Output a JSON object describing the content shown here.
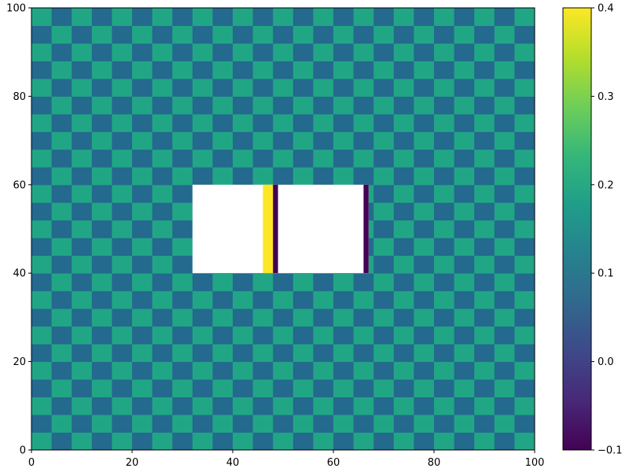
{
  "chart_data": {
    "type": "heatmap",
    "title": "",
    "xlabel": "",
    "ylabel": "",
    "xlim": [
      0,
      100
    ],
    "ylim": [
      0,
      100
    ],
    "x_ticks": [
      0,
      20,
      40,
      60,
      80,
      100
    ],
    "y_ticks": [
      0,
      20,
      40,
      60,
      80,
      100
    ],
    "x_tick_labels": [
      "0",
      "20",
      "40",
      "60",
      "80",
      "100"
    ],
    "y_tick_labels": [
      "0",
      "20",
      "40",
      "60",
      "80",
      "100"
    ],
    "colormap": "viridis",
    "pattern": {
      "name": "checkerboard",
      "cell_width": 4,
      "cell_height": 4,
      "value_a": 0.2,
      "value_b": 0.1,
      "color_a": "#21a685",
      "color_b": "#24698e"
    },
    "masked_region": {
      "x": [
        32,
        67
      ],
      "y": [
        40,
        60
      ],
      "label": "NaN"
    },
    "overlay_bars": [
      {
        "x": [
          46,
          48
        ],
        "y": [
          40,
          60
        ],
        "value": 0.4,
        "color": "#fde725"
      },
      {
        "x": [
          48,
          49
        ],
        "y": [
          40,
          60
        ],
        "value": -0.1,
        "color": "#440154"
      },
      {
        "x": [
          66,
          67
        ],
        "y": [
          40,
          60
        ],
        "value": -0.1,
        "color": "#440154"
      }
    ],
    "colorbar": {
      "min": -0.1,
      "max": 0.4,
      "ticks": [
        -0.1,
        0.0,
        0.1,
        0.2,
        0.3,
        0.4
      ],
      "tick_labels": [
        "−0.1",
        "0.0",
        "0.1",
        "0.2",
        "0.3",
        "0.4"
      ],
      "colors": [
        "#440154",
        "#482878",
        "#3e4989",
        "#31688e",
        "#26828e",
        "#1f9e89",
        "#35b779",
        "#6ece58",
        "#b5de2b",
        "#fde725"
      ]
    }
  }
}
